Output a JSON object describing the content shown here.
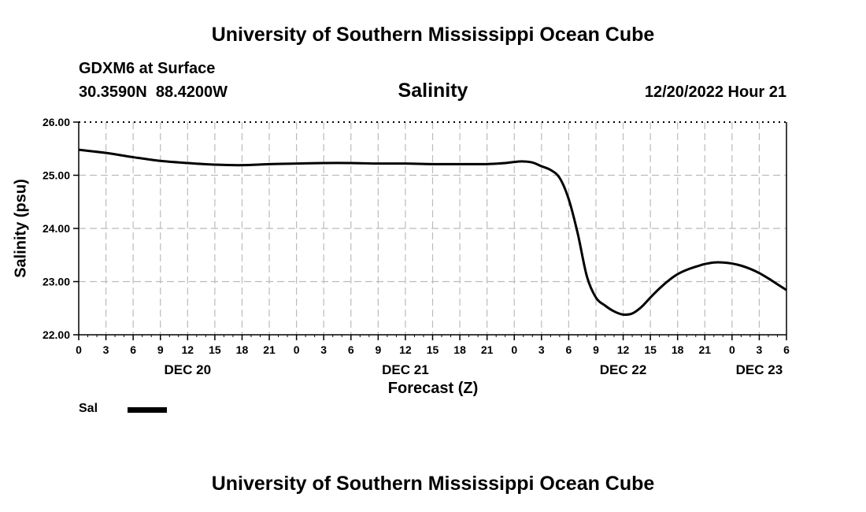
{
  "header": {
    "title_top": "University of Southern Mississippi Ocean Cube",
    "title_bottom": "University of Southern Mississippi Ocean Cube",
    "station": "GDXM6 at Surface",
    "coords": "30.3590N  88.4200W",
    "issued": "12/20/2022 Hour 21"
  },
  "chart_data": {
    "type": "line",
    "title": "Salinity",
    "xlabel": "Forecast (Z)",
    "ylabel": "Salinity (psu)",
    "ylim": [
      22.0,
      26.0
    ],
    "xlim_hours": [
      0,
      78
    ],
    "y_ticks": [
      "22.00",
      "23.00",
      "24.00",
      "25.00",
      "26.00"
    ],
    "y_tick_values": [
      22,
      23,
      24,
      25,
      26
    ],
    "x_ticks": [
      "0",
      "3",
      "6",
      "9",
      "12",
      "15",
      "18",
      "21",
      "0",
      "3",
      "6",
      "9",
      "12",
      "15",
      "18",
      "21",
      "0",
      "3",
      "6",
      "9",
      "12",
      "15",
      "18",
      "21",
      "0",
      "3",
      "6"
    ],
    "date_labels": [
      {
        "label": "DEC 20",
        "hour": 12
      },
      {
        "label": "DEC 21",
        "hour": 36
      },
      {
        "label": "DEC 22",
        "hour": 60
      },
      {
        "label": "DEC 23",
        "hour": 75
      }
    ],
    "grid": true,
    "legend": [
      {
        "name": "Sal",
        "color": "#000000"
      }
    ],
    "series": [
      {
        "name": "Sal",
        "color": "#000000",
        "x": [
          0,
          3,
          6,
          9,
          12,
          15,
          18,
          21,
          24,
          27,
          30,
          33,
          36,
          39,
          42,
          45,
          47,
          48,
          49,
          50,
          51,
          52,
          53,
          54,
          55,
          56,
          57,
          58,
          59,
          60,
          61,
          62,
          63,
          64,
          65,
          66,
          67,
          68,
          69,
          70,
          71,
          72,
          73,
          74,
          75,
          76,
          77,
          78
        ],
        "values": [
          25.48,
          25.42,
          25.34,
          25.27,
          25.23,
          25.2,
          25.19,
          25.21,
          25.22,
          25.23,
          25.23,
          25.22,
          25.22,
          25.21,
          25.21,
          25.21,
          25.23,
          25.25,
          25.26,
          25.24,
          25.17,
          25.1,
          24.95,
          24.55,
          23.9,
          23.1,
          22.7,
          22.55,
          22.44,
          22.38,
          22.4,
          22.52,
          22.7,
          22.87,
          23.02,
          23.14,
          23.22,
          23.28,
          23.33,
          23.36,
          23.36,
          23.34,
          23.3,
          23.24,
          23.16,
          23.06,
          22.95,
          22.84
        ]
      }
    ]
  }
}
